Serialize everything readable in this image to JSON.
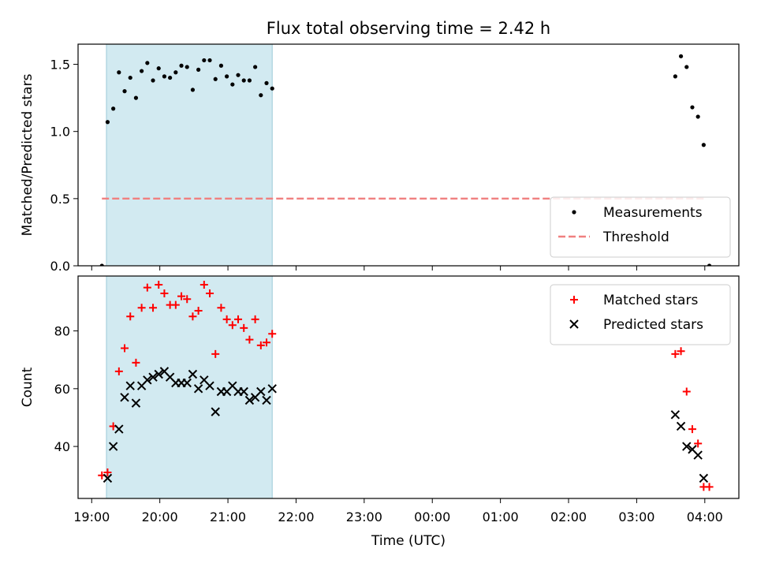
{
  "title": "Flux total observing time = 2.42 h",
  "x_axis": {
    "label": "Time (UTC)",
    "unit": "hours since 19:00 UTC",
    "range": [
      "18:48",
      "04:30"
    ],
    "tick_labels": [
      "19:00",
      "20:00",
      "21:00",
      "22:00",
      "23:00",
      "00:00",
      "01:00",
      "02:00",
      "03:00",
      "04:00"
    ]
  },
  "highlight_span": {
    "from": "19:13",
    "to": "21:39",
    "color": "#add8e6"
  },
  "chart_data": [
    {
      "type": "scatter",
      "ylabel": "Matched/Predicted stars",
      "ylim": [
        0,
        1.65
      ],
      "yticks": [
        "0.0",
        "0.5",
        "1.0",
        "1.5"
      ],
      "legend_position": "lower-right",
      "series": [
        {
          "name": "Measurements",
          "marker": "dot",
          "color": "#000000",
          "x": [
            "19:09",
            "19:14",
            "19:19",
            "19:24",
            "19:29",
            "19:34",
            "19:39",
            "19:44",
            "19:49",
            "19:54",
            "19:59",
            "20:04",
            "20:09",
            "20:14",
            "20:19",
            "20:24",
            "20:29",
            "20:34",
            "20:39",
            "20:44",
            "20:49",
            "20:54",
            "20:59",
            "21:04",
            "21:09",
            "21:14",
            "21:19",
            "21:24",
            "21:29",
            "21:34",
            "21:39",
            "03:34",
            "03:39",
            "03:44",
            "03:49",
            "03:54",
            "03:59",
            "04:04"
          ],
          "values": [
            0,
            1.07,
            1.17,
            1.44,
            1.3,
            1.4,
            1.25,
            1.45,
            1.51,
            1.38,
            1.47,
            1.41,
            1.4,
            1.44,
            1.49,
            1.48,
            1.31,
            1.46,
            1.53,
            1.53,
            1.39,
            1.49,
            1.41,
            1.35,
            1.42,
            1.38,
            1.38,
            1.48,
            1.27,
            1.36,
            1.32,
            1.41,
            1.56,
            1.48,
            1.18,
            1.11,
            0.9,
            0
          ]
        },
        {
          "name": "Threshold",
          "style": "dashed",
          "color": "#f08080",
          "x": [
            "19:09",
            "04:00"
          ],
          "values": [
            0.5,
            0.5
          ]
        }
      ]
    },
    {
      "type": "scatter",
      "ylabel": "Count",
      "ylim": [
        22,
        99
      ],
      "yticks": [
        "40",
        "60",
        "80"
      ],
      "legend_position": "upper-right",
      "series": [
        {
          "name": "Matched stars",
          "marker": "plus",
          "color": "#ff0000",
          "x": [
            "19:09",
            "19:14",
            "19:19",
            "19:24",
            "19:29",
            "19:34",
            "19:39",
            "19:44",
            "19:49",
            "19:54",
            "19:59",
            "20:04",
            "20:09",
            "20:14",
            "20:19",
            "20:24",
            "20:29",
            "20:34",
            "20:39",
            "20:44",
            "20:49",
            "20:54",
            "20:59",
            "21:04",
            "21:09",
            "21:14",
            "21:19",
            "21:24",
            "21:29",
            "21:34",
            "21:39",
            "03:34",
            "03:39",
            "03:44",
            "03:49",
            "03:54",
            "03:59",
            "04:04"
          ],
          "values": [
            30,
            31,
            47,
            66,
            74,
            85,
            69,
            88,
            95,
            88,
            96,
            93,
            89,
            89,
            92,
            91,
            85,
            87,
            96,
            93,
            72,
            88,
            84,
            82,
            84,
            81,
            77,
            84,
            75,
            76,
            79,
            72,
            73,
            59,
            46,
            41,
            26,
            26
          ]
        },
        {
          "name": "Predicted stars",
          "marker": "x",
          "color": "#000000",
          "x": [
            "19:14",
            "19:19",
            "19:24",
            "19:29",
            "19:34",
            "19:39",
            "19:44",
            "19:49",
            "19:54",
            "19:59",
            "20:04",
            "20:09",
            "20:14",
            "20:19",
            "20:24",
            "20:29",
            "20:34",
            "20:39",
            "20:44",
            "20:49",
            "20:54",
            "20:59",
            "21:04",
            "21:09",
            "21:14",
            "21:19",
            "21:24",
            "21:29",
            "21:34",
            "21:39",
            "03:34",
            "03:39",
            "03:44",
            "03:49",
            "03:54",
            "03:59"
          ],
          "values": [
            29,
            40,
            46,
            57,
            61,
            55,
            61,
            63,
            64,
            65,
            66,
            64,
            62,
            62,
            62,
            65,
            60,
            63,
            61,
            52,
            59,
            59,
            61,
            59,
            59,
            56,
            57,
            59,
            56,
            60,
            51,
            47,
            40,
            39,
            37,
            29
          ]
        }
      ]
    }
  ]
}
